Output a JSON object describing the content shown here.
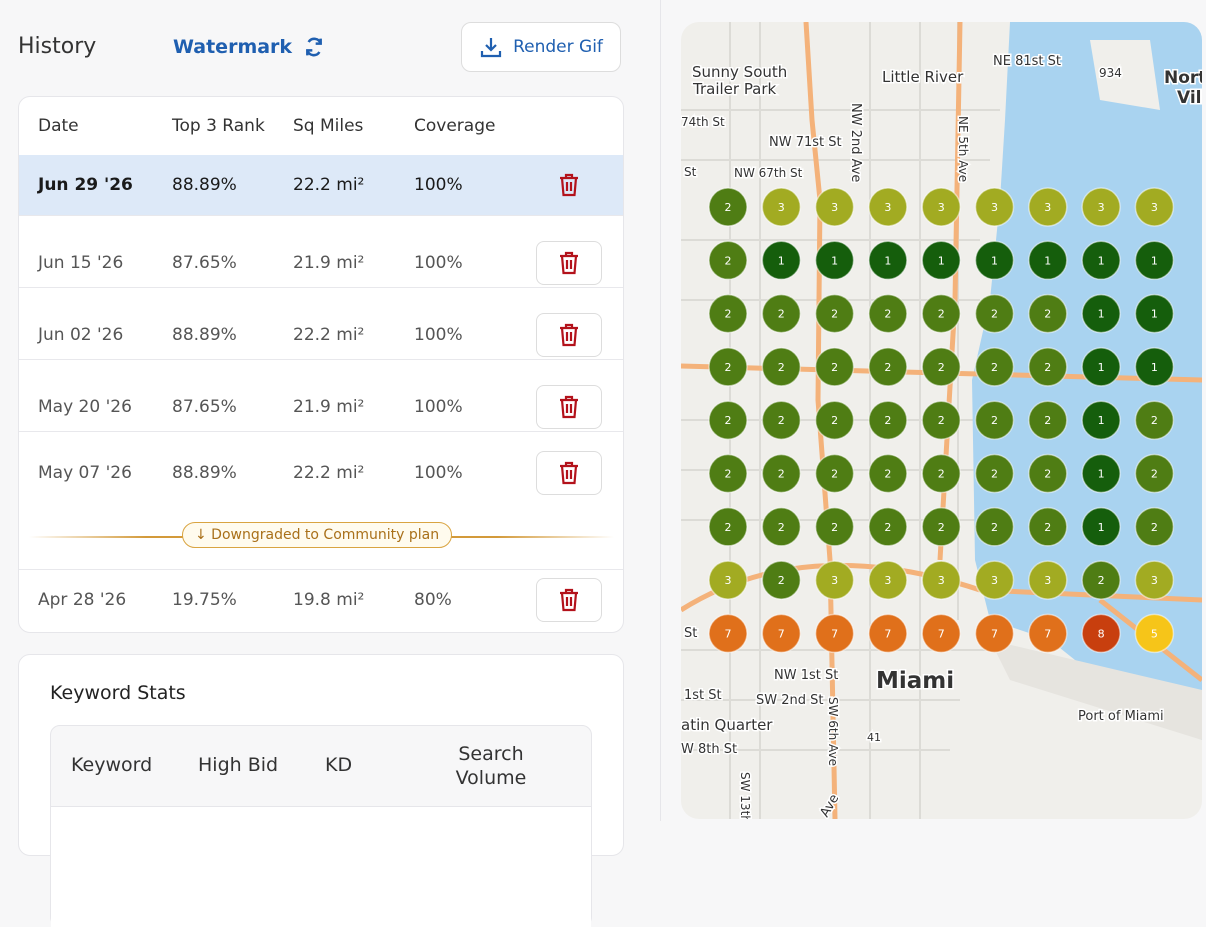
{
  "header": {
    "title": "History",
    "watermark": "Watermark",
    "render_button": "Render Gif"
  },
  "table": {
    "columns": [
      "Date",
      "Top 3 Rank",
      "Sq Miles",
      "Coverage"
    ],
    "rows": [
      [
        "Jun 29 '26",
        "88.89%",
        "22.2 mi²",
        "100%"
      ],
      [
        "Jun 15 '26",
        "87.65%",
        "21.9 mi²",
        "100%"
      ],
      [
        "Jun 02 '26",
        "88.89%",
        "22.2 mi²",
        "100%"
      ],
      [
        "May 20 '26",
        "87.65%",
        "21.9 mi²",
        "100%"
      ],
      [
        "May 07 '26",
        "88.89%",
        "22.2 mi²",
        "100%"
      ],
      [
        "Apr 28 '26",
        "19.75%",
        "19.8 mi²",
        "80%"
      ]
    ],
    "selected_row": 0
  },
  "downgrade_notice": "↓ Downgraded to Community plan",
  "keyword_stats": {
    "title": "Keyword Stats",
    "columns": [
      "Keyword",
      "High Bid",
      "KD",
      "Search Volume"
    ]
  },
  "map": {
    "labels": [
      "Sunny South",
      "Trailer Park",
      "Little River",
      "NE 81st St",
      "934",
      "Nort",
      "Vill",
      "74th St",
      "NW 71st St",
      "NW 2nd Ave",
      "NE 5th Ave",
      "St",
      "NW 67th St",
      "St",
      "NW 1st St",
      "Miami",
      "1st St",
      "SW 2nd St",
      "SW 6th Ave",
      "atin Quarter",
      "41",
      "Port of Miami",
      "W 8th St",
      "SW 13th",
      "Ave"
    ],
    "rank_colors": {
      "1": "#155e0c",
      "2": "#4f7d14",
      "3": "#a2ab22",
      "5": "#f6c519",
      "7": "#e0701b",
      "8": "#c83f0e"
    },
    "grid": [
      [
        2,
        3,
        3,
        3,
        3,
        3,
        3,
        3,
        3
      ],
      [
        2,
        1,
        1,
        1,
        1,
        1,
        1,
        1,
        1
      ],
      [
        2,
        2,
        2,
        2,
        2,
        2,
        2,
        1,
        1
      ],
      [
        2,
        2,
        2,
        2,
        2,
        2,
        2,
        1,
        1
      ],
      [
        2,
        2,
        2,
        2,
        2,
        2,
        2,
        1,
        2
      ],
      [
        2,
        2,
        2,
        2,
        2,
        2,
        2,
        1,
        2
      ],
      [
        2,
        2,
        2,
        2,
        2,
        2,
        2,
        1,
        2
      ],
      [
        3,
        2,
        3,
        3,
        3,
        3,
        3,
        2,
        3
      ],
      [
        7,
        7,
        7,
        7,
        7,
        7,
        7,
        8,
        5
      ]
    ]
  }
}
